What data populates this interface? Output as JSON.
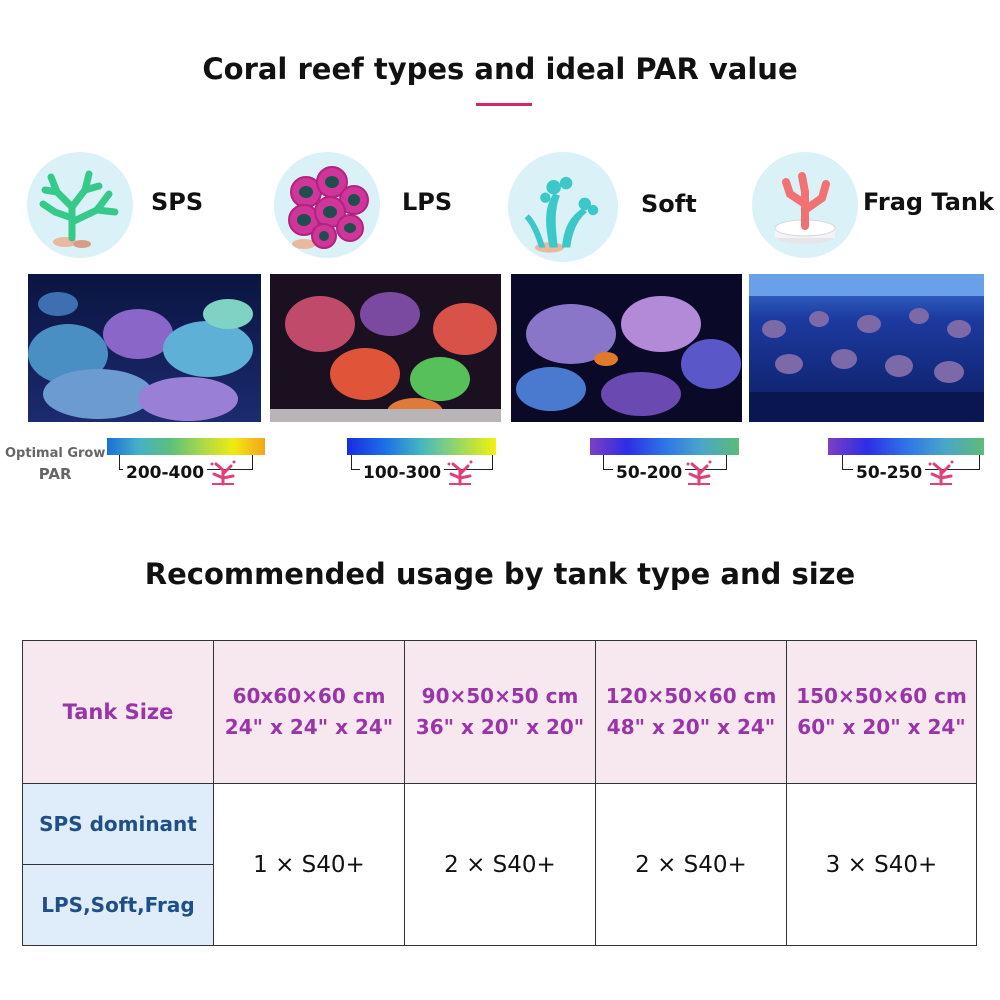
{
  "section1_title": "Coral reef types and ideal PAR value",
  "section2_title": "Recommended usage by tank type and size",
  "par_label": {
    "line1": "Optimal Grow",
    "line2": "PAR"
  },
  "corals": [
    {
      "name": "SPS",
      "icon": "sps-coral-icon",
      "color": "#35c98a",
      "par_range": "200-400",
      "par_gradient": [
        "#1a6fd6",
        "#47b0c8",
        "#5bbf7c",
        "#a8d84a",
        "#f0ea10",
        "#f2a51c"
      ]
    },
    {
      "name": "LPS",
      "icon": "lps-coral-icon",
      "color": "#d0359a",
      "par_range": "100-300",
      "par_gradient": [
        "#1a2be0",
        "#1c6ee8",
        "#46b7c0",
        "#99d764",
        "#f2f20c"
      ]
    },
    {
      "name": "Soft",
      "icon": "soft-coral-icon",
      "color": "#3cc7c9",
      "par_range": "50-200",
      "par_gradient": [
        "#7b3fc3",
        "#2d2ee6",
        "#2e74e8",
        "#4aa6c8",
        "#5fba78"
      ]
    },
    {
      "name": "Frag Tank",
      "icon": "frag-tank-coral-icon",
      "color": "#f07272",
      "par_range": "50-250",
      "par_gradient": [
        "#7b3fc3",
        "#2d2ee6",
        "#2e74e8",
        "#4aa6c8",
        "#5fba78"
      ]
    }
  ],
  "table": {
    "header_label": "Tank Size",
    "sizes": [
      {
        "metric": "60x60×60 cm",
        "imperial": "24\" x 24\" x 24\""
      },
      {
        "metric": "90×50×50 cm",
        "imperial": "36\" x 20\" x 20\""
      },
      {
        "metric": "120×50×60 cm",
        "imperial": "48\" x 20\" x 24\""
      },
      {
        "metric": "150×50×60 cm",
        "imperial": "60\" x 20\" x 24\""
      }
    ],
    "rows": [
      "SPS dominant",
      "LPS,Soft,Frag"
    ],
    "values": [
      "1  × S40+",
      "2  × S40+",
      "2  × S40+",
      "3  × S40+"
    ]
  },
  "colors": {
    "accent": "#d6246e",
    "header_text": "#9a35a8",
    "row_label_text": "#1f4f86"
  }
}
